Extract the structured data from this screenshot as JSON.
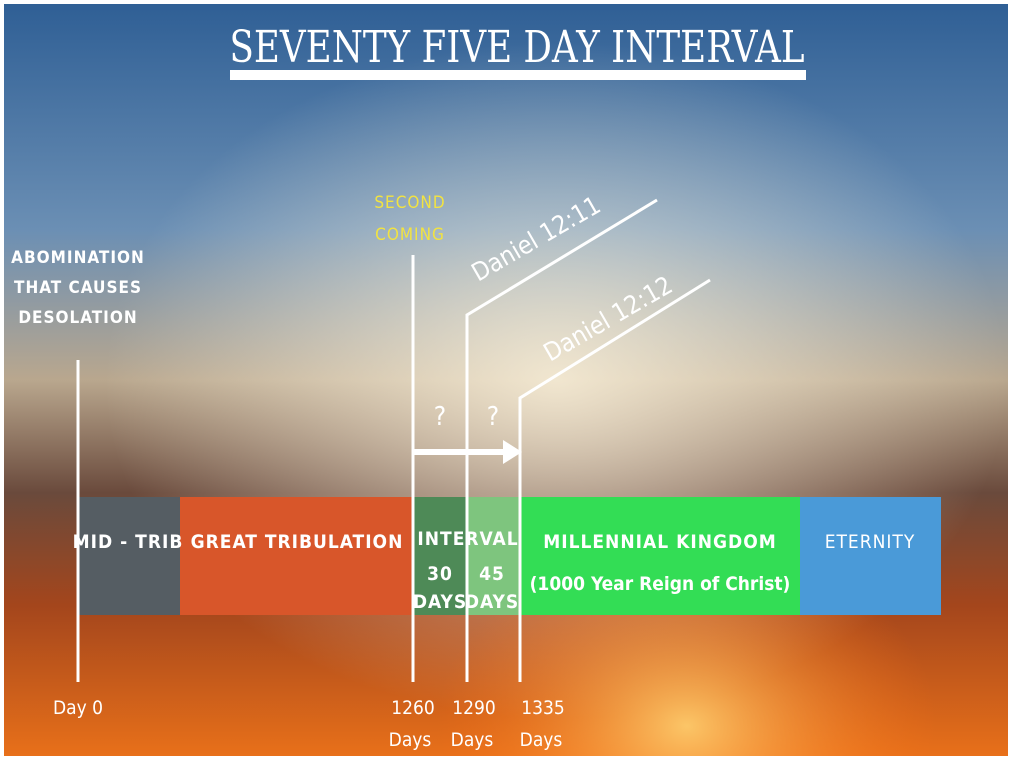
{
  "title": "SEVENTY FIVE DAY INTERVAL",
  "markers": {
    "abomination": [
      "ABOMINATION",
      "THAT CAUSES",
      "DESOLATION"
    ],
    "second_coming": [
      "SECOND",
      "COMING"
    ],
    "daniel_12_11": "Daniel 12:11",
    "daniel_12_12": "Daniel 12:12",
    "questions": [
      "?",
      "?"
    ]
  },
  "segments": {
    "mid_trib": "MID - TRIB",
    "great_tribulation": "GREAT TRIBULATION",
    "interval": "INTERVAL",
    "first_part": [
      "30",
      "DAYS"
    ],
    "second_part": [
      "45",
      "DAYS"
    ],
    "millennial": [
      "MILLENNIAL KINGDOM",
      "(1000 Year Reign of Christ)"
    ],
    "eternity": "ETERNITY"
  },
  "days": {
    "day0": "Day 0",
    "d1260": [
      "1260",
      "Days"
    ],
    "d1290": [
      "1290",
      "Days"
    ],
    "d1335": [
      "1335",
      "Days"
    ]
  }
}
